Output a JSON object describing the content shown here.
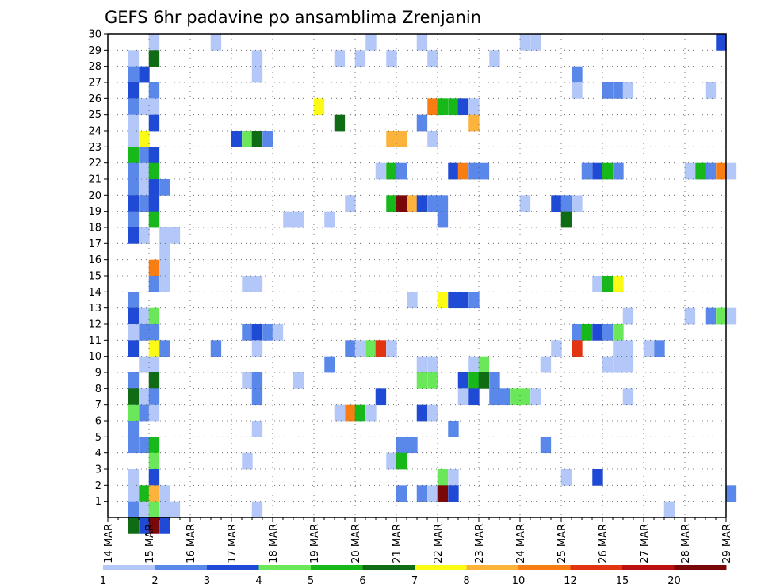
{
  "chart_data": {
    "type": "heatmap",
    "title": "GEFS 6hr padavine po ansamblima Zrenjanin",
    "xlabel": "",
    "ylabel": "",
    "grid": true,
    "legend_position": "bottom",
    "x_tick_labels": [
      "14 MAR",
      "15 MAR",
      "16 MAR",
      "17 MAR",
      "18 MAR",
      "19 MAR",
      "20 MAR",
      "21 MAR",
      "22 MAR",
      "23 MAR",
      "24 MAR",
      "25 MAR",
      "26 MAR",
      "27 MAR",
      "28 MAR",
      "29 MAR"
    ],
    "x_range": [
      0,
      15
    ],
    "y_members": [
      30,
      29,
      28,
      27,
      26,
      25,
      24,
      23,
      22,
      21,
      20,
      19,
      18,
      17,
      16,
      15,
      14,
      13,
      12,
      11,
      10,
      9,
      8,
      7,
      6,
      5,
      4,
      3,
      2,
      1
    ],
    "y_range": [
      0,
      30
    ],
    "colorbar": {
      "thresholds": [
        1,
        2,
        3,
        4,
        5,
        6,
        7,
        8,
        10,
        12,
        15,
        20
      ],
      "colors": [
        "#b3c8f8",
        "#5a87ea",
        "#1f4ad6",
        "#6ae85a",
        "#17b81a",
        "#0f6b14",
        "#fbfb16",
        "#fbb33b",
        "#f87e13",
        "#e23411",
        "#bc0f0f",
        "#7a0808"
      ]
    },
    "cells": [
      {
        "m": 30,
        "x": 1.12,
        "c": 0
      },
      {
        "m": 30,
        "x": 2.62,
        "c": 0
      },
      {
        "m": 30,
        "x": 6.38,
        "c": 0
      },
      {
        "m": 30,
        "x": 7.62,
        "c": 0
      },
      {
        "m": 30,
        "x": 10.12,
        "c": 0
      },
      {
        "m": 30,
        "x": 10.38,
        "c": 0
      },
      {
        "m": 30,
        "x": 14.88,
        "c": 2
      },
      {
        "m": 29,
        "x": 0.62,
        "c": 0
      },
      {
        "m": 29,
        "x": 1.12,
        "c": 5
      },
      {
        "m": 29,
        "x": 3.62,
        "c": 0
      },
      {
        "m": 29,
        "x": 5.62,
        "c": 0
      },
      {
        "m": 29,
        "x": 6.12,
        "c": 0
      },
      {
        "m": 29,
        "x": 6.88,
        "c": 0
      },
      {
        "m": 29,
        "x": 7.88,
        "c": 0
      },
      {
        "m": 29,
        "x": 9.38,
        "c": 0
      },
      {
        "m": 28,
        "x": 0.62,
        "c": 1
      },
      {
        "m": 28,
        "x": 0.88,
        "c": 2
      },
      {
        "m": 28,
        "x": 3.62,
        "c": 0
      },
      {
        "m": 28,
        "x": 11.38,
        "c": 1
      },
      {
        "m": 27,
        "x": 0.62,
        "c": 2
      },
      {
        "m": 27,
        "x": 1.12,
        "c": 1
      },
      {
        "m": 27,
        "x": 11.38,
        "c": 0
      },
      {
        "m": 27,
        "x": 12.12,
        "c": 1
      },
      {
        "m": 27,
        "x": 12.38,
        "c": 1
      },
      {
        "m": 27,
        "x": 12.62,
        "c": 0
      },
      {
        "m": 27,
        "x": 14.62,
        "c": 0
      },
      {
        "m": 26,
        "x": 0.62,
        "c": 1
      },
      {
        "m": 26,
        "x": 0.88,
        "c": 0
      },
      {
        "m": 26,
        "x": 1.12,
        "c": 0
      },
      {
        "m": 26,
        "x": 5.12,
        "c": 6
      },
      {
        "m": 26,
        "x": 7.88,
        "c": 8
      },
      {
        "m": 26,
        "x": 8.12,
        "c": 4
      },
      {
        "m": 26,
        "x": 8.38,
        "c": 4
      },
      {
        "m": 26,
        "x": 8.62,
        "c": 2
      },
      {
        "m": 26,
        "x": 8.88,
        "c": 0
      },
      {
        "m": 25,
        "x": 0.62,
        "c": 0
      },
      {
        "m": 25,
        "x": 1.12,
        "c": 2
      },
      {
        "m": 25,
        "x": 5.62,
        "c": 5
      },
      {
        "m": 25,
        "x": 7.62,
        "c": 1
      },
      {
        "m": 25,
        "x": 8.88,
        "c": 7
      },
      {
        "m": 24,
        "x": 0.62,
        "c": 0
      },
      {
        "m": 24,
        "x": 0.88,
        "c": 6
      },
      {
        "m": 24,
        "x": 3.12,
        "c": 2
      },
      {
        "m": 24,
        "x": 3.38,
        "c": 3
      },
      {
        "m": 24,
        "x": 3.62,
        "c": 5
      },
      {
        "m": 24,
        "x": 3.88,
        "c": 1
      },
      {
        "m": 24,
        "x": 6.88,
        "c": 7
      },
      {
        "m": 24,
        "x": 7.12,
        "c": 7
      },
      {
        "m": 24,
        "x": 7.88,
        "c": 0
      },
      {
        "m": 23,
        "x": 0.62,
        "c": 4
      },
      {
        "m": 23,
        "x": 0.88,
        "c": 1
      },
      {
        "m": 23,
        "x": 1.12,
        "c": 2
      },
      {
        "m": 22,
        "x": 0.62,
        "c": 1
      },
      {
        "m": 22,
        "x": 0.88,
        "c": 0
      },
      {
        "m": 22,
        "x": 1.12,
        "c": 4
      },
      {
        "m": 22,
        "x": 6.62,
        "c": 0
      },
      {
        "m": 22,
        "x": 6.88,
        "c": 4
      },
      {
        "m": 22,
        "x": 7.12,
        "c": 1
      },
      {
        "m": 22,
        "x": 8.38,
        "c": 2
      },
      {
        "m": 22,
        "x": 8.62,
        "c": 8
      },
      {
        "m": 22,
        "x": 8.88,
        "c": 1
      },
      {
        "m": 22,
        "x": 9.12,
        "c": 1
      },
      {
        "m": 22,
        "x": 11.62,
        "c": 1
      },
      {
        "m": 22,
        "x": 11.88,
        "c": 2
      },
      {
        "m": 22,
        "x": 12.12,
        "c": 4
      },
      {
        "m": 22,
        "x": 12.38,
        "c": 1
      },
      {
        "m": 22,
        "x": 14.12,
        "c": 0
      },
      {
        "m": 22,
        "x": 14.38,
        "c": 4
      },
      {
        "m": 22,
        "x": 14.62,
        "c": 1
      },
      {
        "m": 22,
        "x": 14.88,
        "c": 8
      },
      {
        "m": 22,
        "x": 15.12,
        "c": 0
      },
      {
        "m": 21,
        "x": 0.62,
        "c": 1
      },
      {
        "m": 21,
        "x": 0.88,
        "c": 0
      },
      {
        "m": 21,
        "x": 1.12,
        "c": 2
      },
      {
        "m": 21,
        "x": 1.38,
        "c": 1
      },
      {
        "m": 20,
        "x": 0.62,
        "c": 2
      },
      {
        "m": 20,
        "x": 0.88,
        "c": 1
      },
      {
        "m": 20,
        "x": 1.12,
        "c": 2
      },
      {
        "m": 20,
        "x": 5.88,
        "c": 0
      },
      {
        "m": 20,
        "x": 6.88,
        "c": 4
      },
      {
        "m": 20,
        "x": 7.12,
        "c": 11
      },
      {
        "m": 20,
        "x": 7.38,
        "c": 7
      },
      {
        "m": 20,
        "x": 7.62,
        "c": 2
      },
      {
        "m": 20,
        "x": 7.88,
        "c": 1
      },
      {
        "m": 20,
        "x": 8.12,
        "c": 1
      },
      {
        "m": 20,
        "x": 10.12,
        "c": 0
      },
      {
        "m": 20,
        "x": 10.88,
        "c": 2
      },
      {
        "m": 20,
        "x": 11.12,
        "c": 1
      },
      {
        "m": 20,
        "x": 11.38,
        "c": 0
      },
      {
        "m": 19,
        "x": 0.62,
        "c": 1
      },
      {
        "m": 19,
        "x": 1.12,
        "c": 4
      },
      {
        "m": 19,
        "x": 4.38,
        "c": 0
      },
      {
        "m": 19,
        "x": 4.62,
        "c": 0
      },
      {
        "m": 19,
        "x": 5.38,
        "c": 0
      },
      {
        "m": 19,
        "x": 8.12,
        "c": 1
      },
      {
        "m": 19,
        "x": 11.12,
        "c": 5
      },
      {
        "m": 18,
        "x": 0.62,
        "c": 2
      },
      {
        "m": 18,
        "x": 0.88,
        "c": 0
      },
      {
        "m": 18,
        "x": 1.38,
        "c": 0
      },
      {
        "m": 18,
        "x": 1.62,
        "c": 0
      },
      {
        "m": 17,
        "x": 1.38,
        "c": 0
      },
      {
        "m": 16,
        "x": 1.12,
        "c": 8
      },
      {
        "m": 16,
        "x": 1.38,
        "c": 0
      },
      {
        "m": 15,
        "x": 1.12,
        "c": 1
      },
      {
        "m": 15,
        "x": 1.38,
        "c": 0
      },
      {
        "m": 15,
        "x": 3.38,
        "c": 0
      },
      {
        "m": 15,
        "x": 3.62,
        "c": 0
      },
      {
        "m": 15,
        "x": 11.88,
        "c": 0
      },
      {
        "m": 15,
        "x": 12.12,
        "c": 4
      },
      {
        "m": 15,
        "x": 12.38,
        "c": 6
      },
      {
        "m": 14,
        "x": 0.62,
        "c": 1
      },
      {
        "m": 14,
        "x": 7.38,
        "c": 0
      },
      {
        "m": 14,
        "x": 8.12,
        "c": 6
      },
      {
        "m": 14,
        "x": 8.38,
        "c": 2
      },
      {
        "m": 14,
        "x": 8.62,
        "c": 2
      },
      {
        "m": 14,
        "x": 8.88,
        "c": 1
      },
      {
        "m": 13,
        "x": 0.62,
        "c": 2
      },
      {
        "m": 13,
        "x": 0.88,
        "c": 0
      },
      {
        "m": 13,
        "x": 1.12,
        "c": 3
      },
      {
        "m": 13,
        "x": 12.62,
        "c": 0
      },
      {
        "m": 13,
        "x": 14.12,
        "c": 0
      },
      {
        "m": 13,
        "x": 14.62,
        "c": 1
      },
      {
        "m": 13,
        "x": 14.88,
        "c": 3
      },
      {
        "m": 13,
        "x": 15.12,
        "c": 0
      },
      {
        "m": 12,
        "x": 0.62,
        "c": 0
      },
      {
        "m": 12,
        "x": 0.88,
        "c": 1
      },
      {
        "m": 12,
        "x": 1.12,
        "c": 1
      },
      {
        "m": 12,
        "x": 3.38,
        "c": 1
      },
      {
        "m": 12,
        "x": 3.62,
        "c": 2
      },
      {
        "m": 12,
        "x": 3.88,
        "c": 1
      },
      {
        "m": 12,
        "x": 4.12,
        "c": 0
      },
      {
        "m": 12,
        "x": 11.38,
        "c": 1
      },
      {
        "m": 12,
        "x": 11.62,
        "c": 4
      },
      {
        "m": 12,
        "x": 11.88,
        "c": 2
      },
      {
        "m": 12,
        "x": 12.12,
        "c": 1
      },
      {
        "m": 12,
        "x": 12.38,
        "c": 3
      },
      {
        "m": 11,
        "x": 0.62,
        "c": 2
      },
      {
        "m": 11,
        "x": 1.12,
        "c": 6
      },
      {
        "m": 11,
        "x": 1.38,
        "c": 1
      },
      {
        "m": 11,
        "x": 2.62,
        "c": 1
      },
      {
        "m": 11,
        "x": 3.62,
        "c": 0
      },
      {
        "m": 11,
        "x": 5.88,
        "c": 1
      },
      {
        "m": 11,
        "x": 6.12,
        "c": 0
      },
      {
        "m": 11,
        "x": 6.38,
        "c": 3
      },
      {
        "m": 11,
        "x": 6.62,
        "c": 9
      },
      {
        "m": 11,
        "x": 6.88,
        "c": 0
      },
      {
        "m": 11,
        "x": 10.88,
        "c": 0
      },
      {
        "m": 11,
        "x": 11.38,
        "c": 9
      },
      {
        "m": 11,
        "x": 12.38,
        "c": 0
      },
      {
        "m": 11,
        "x": 12.62,
        "c": 0
      },
      {
        "m": 11,
        "x": 13.12,
        "c": 0
      },
      {
        "m": 11,
        "x": 13.38,
        "c": 1
      },
      {
        "m": 10,
        "x": 0.88,
        "c": 0
      },
      {
        "m": 10,
        "x": 1.12,
        "c": 0
      },
      {
        "m": 10,
        "x": 5.38,
        "c": 1
      },
      {
        "m": 10,
        "x": 7.62,
        "c": 0
      },
      {
        "m": 10,
        "x": 7.88,
        "c": 0
      },
      {
        "m": 10,
        "x": 8.88,
        "c": 0
      },
      {
        "m": 10,
        "x": 9.12,
        "c": 3
      },
      {
        "m": 10,
        "x": 10.62,
        "c": 0
      },
      {
        "m": 10,
        "x": 12.12,
        "c": 0
      },
      {
        "m": 10,
        "x": 12.38,
        "c": 0
      },
      {
        "m": 10,
        "x": 12.62,
        "c": 0
      },
      {
        "m": 9,
        "x": 0.62,
        "c": 1
      },
      {
        "m": 9,
        "x": 1.12,
        "c": 5
      },
      {
        "m": 9,
        "x": 3.38,
        "c": 0
      },
      {
        "m": 9,
        "x": 3.62,
        "c": 1
      },
      {
        "m": 9,
        "x": 4.62,
        "c": 0
      },
      {
        "m": 9,
        "x": 7.62,
        "c": 3
      },
      {
        "m": 9,
        "x": 7.88,
        "c": 3
      },
      {
        "m": 9,
        "x": 8.62,
        "c": 2
      },
      {
        "m": 9,
        "x": 8.88,
        "c": 4
      },
      {
        "m": 9,
        "x": 9.12,
        "c": 5
      },
      {
        "m": 9,
        "x": 9.38,
        "c": 1
      },
      {
        "m": 8,
        "x": 0.62,
        "c": 5
      },
      {
        "m": 8,
        "x": 0.88,
        "c": 0
      },
      {
        "m": 8,
        "x": 1.12,
        "c": 1
      },
      {
        "m": 8,
        "x": 3.62,
        "c": 1
      },
      {
        "m": 8,
        "x": 6.62,
        "c": 2
      },
      {
        "m": 8,
        "x": 8.62,
        "c": 0
      },
      {
        "m": 8,
        "x": 8.88,
        "c": 2
      },
      {
        "m": 8,
        "x": 9.38,
        "c": 1
      },
      {
        "m": 8,
        "x": 9.62,
        "c": 1
      },
      {
        "m": 8,
        "x": 9.88,
        "c": 3
      },
      {
        "m": 8,
        "x": 10.12,
        "c": 3
      },
      {
        "m": 8,
        "x": 10.38,
        "c": 0
      },
      {
        "m": 8,
        "x": 12.62,
        "c": 0
      },
      {
        "m": 7,
        "x": 0.62,
        "c": 3
      },
      {
        "m": 7,
        "x": 0.88,
        "c": 1
      },
      {
        "m": 7,
        "x": 1.12,
        "c": 0
      },
      {
        "m": 7,
        "x": 5.62,
        "c": 0
      },
      {
        "m": 7,
        "x": 5.88,
        "c": 8
      },
      {
        "m": 7,
        "x": 6.12,
        "c": 4
      },
      {
        "m": 7,
        "x": 6.38,
        "c": 0
      },
      {
        "m": 7,
        "x": 7.62,
        "c": 2
      },
      {
        "m": 7,
        "x": 7.88,
        "c": 0
      },
      {
        "m": 6,
        "x": 0.62,
        "c": 1
      },
      {
        "m": 6,
        "x": 3.62,
        "c": 0
      },
      {
        "m": 6,
        "x": 8.38,
        "c": 1
      },
      {
        "m": 5,
        "x": 0.62,
        "c": 1
      },
      {
        "m": 5,
        "x": 0.88,
        "c": 1
      },
      {
        "m": 5,
        "x": 1.12,
        "c": 4
      },
      {
        "m": 5,
        "x": 7.12,
        "c": 1
      },
      {
        "m": 5,
        "x": 7.38,
        "c": 1
      },
      {
        "m": 5,
        "x": 10.62,
        "c": 1
      },
      {
        "m": 4,
        "x": 1.12,
        "c": 3
      },
      {
        "m": 4,
        "x": 3.38,
        "c": 0
      },
      {
        "m": 4,
        "x": 6.88,
        "c": 0
      },
      {
        "m": 4,
        "x": 7.12,
        "c": 4
      },
      {
        "m": 3,
        "x": 0.62,
        "c": 0
      },
      {
        "m": 3,
        "x": 1.12,
        "c": 2
      },
      {
        "m": 3,
        "x": 8.12,
        "c": 3
      },
      {
        "m": 3,
        "x": 8.38,
        "c": 0
      },
      {
        "m": 3,
        "x": 11.12,
        "c": 0
      },
      {
        "m": 3,
        "x": 11.88,
        "c": 2
      },
      {
        "m": 2,
        "x": 0.62,
        "c": 0
      },
      {
        "m": 2,
        "x": 0.88,
        "c": 4
      },
      {
        "m": 2,
        "x": 1.12,
        "c": 7
      },
      {
        "m": 2,
        "x": 1.38,
        "c": 0
      },
      {
        "m": 2,
        "x": 7.12,
        "c": 1
      },
      {
        "m": 2,
        "x": 7.62,
        "c": 1
      },
      {
        "m": 2,
        "x": 7.88,
        "c": 0
      },
      {
        "m": 2,
        "x": 8.12,
        "c": 11
      },
      {
        "m": 2,
        "x": 8.38,
        "c": 2
      },
      {
        "m": 2,
        "x": 15.12,
        "c": 1
      },
      {
        "m": 1,
        "x": 0.62,
        "c": 1
      },
      {
        "m": 1,
        "x": 0.88,
        "c": 0
      },
      {
        "m": 1,
        "x": 1.12,
        "c": 3
      },
      {
        "m": 1,
        "x": 1.38,
        "c": 0
      },
      {
        "m": 1,
        "x": 1.62,
        "c": 0
      },
      {
        "m": 1,
        "x": 3.62,
        "c": 0
      },
      {
        "m": 1,
        "x": 13.62,
        "c": 0
      },
      {
        "m": 0,
        "x": 0.62,
        "c": 5
      },
      {
        "m": 0,
        "x": 0.88,
        "c": 2
      },
      {
        "m": 0,
        "x": 1.12,
        "c": 11
      },
      {
        "m": 0,
        "x": 1.38,
        "c": 2
      }
    ]
  }
}
